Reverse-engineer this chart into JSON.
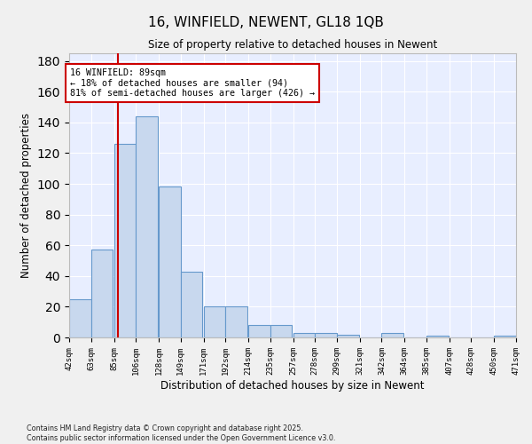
{
  "title": "16, WINFIELD, NEWENT, GL18 1QB",
  "subtitle": "Size of property relative to detached houses in Newent",
  "xlabel": "Distribution of detached houses by size in Newent",
  "ylabel": "Number of detached properties",
  "bar_color": "#c8d8ee",
  "bar_edge_color": "#6699cc",
  "background_color": "#e8eeff",
  "grid_color": "#ffffff",
  "bins": [
    42,
    63,
    85,
    106,
    128,
    149,
    171,
    192,
    214,
    235,
    257,
    278,
    299,
    321,
    342,
    364,
    385,
    407,
    428,
    450,
    471
  ],
  "bin_labels": [
    "42sqm",
    "63sqm",
    "85sqm",
    "106sqm",
    "128sqm",
    "149sqm",
    "171sqm",
    "192sqm",
    "214sqm",
    "235sqm",
    "257sqm",
    "278sqm",
    "299sqm",
    "321sqm",
    "342sqm",
    "364sqm",
    "385sqm",
    "407sqm",
    "428sqm",
    "450sqm",
    "471sqm"
  ],
  "values": [
    25,
    57,
    126,
    144,
    98,
    43,
    20,
    20,
    8,
    8,
    3,
    3,
    2,
    0,
    3,
    0,
    1,
    0,
    0,
    1,
    0
  ],
  "annotation_text": "16 WINFIELD: 89sqm\n← 18% of detached houses are smaller (94)\n81% of semi-detached houses are larger (426) →",
  "vline_x": 89,
  "vline_color": "#cc0000",
  "annotation_box_color": "#ffffff",
  "annotation_box_edge": "#cc0000",
  "ylim": [
    0,
    185
  ],
  "yticks": [
    0,
    20,
    40,
    60,
    80,
    100,
    120,
    140,
    160,
    180
  ],
  "footer_text": "Contains HM Land Registry data © Crown copyright and database right 2025.\nContains public sector information licensed under the Open Government Licence v3.0.",
  "fig_bg_color": "#f0f0f0"
}
